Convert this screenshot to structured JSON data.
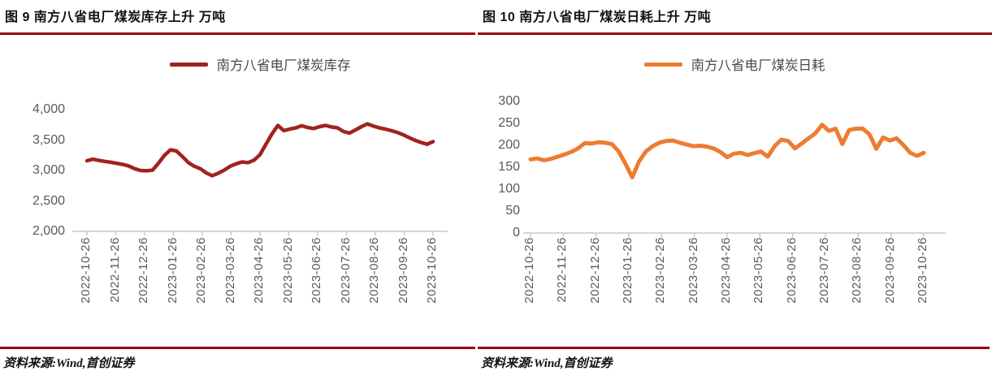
{
  "colors": {
    "rule_red": "#990000",
    "axis_gray": "#c8c8c8",
    "tick_label_gray": "#595959",
    "inventory_line": "#a1231d",
    "consumption_line": "#ed7c31"
  },
  "figures": [
    {
      "title": "图 9 南方八省电厂煤炭库存上升 万吨",
      "legend_label": "南方八省电厂煤炭库存",
      "source": "资料来源:Wind,首创证券",
      "chart_data": {
        "type": "line",
        "title": "南方八省电厂煤炭库存",
        "unit": "万吨",
        "legend_position": "top",
        "grid": false,
        "line_color": "#a1231d",
        "ylim": [
          2000,
          4000
        ],
        "y_ticks": [
          4000,
          3500,
          3000,
          2500,
          2000
        ],
        "y_tick_labels": [
          "4,000",
          "3,500",
          "3,000",
          "2,500",
          "2,000"
        ],
        "x_tick_labels": [
          "2022-10-26",
          "2022-11-26",
          "2022-12-26",
          "2023-01-26",
          "2023-02-26",
          "2023-03-26",
          "2023-04-26",
          "2023-05-26",
          "2023-06-26",
          "2023-07-26",
          "2023-08-26",
          "2023-09-26",
          "2023-10-26"
        ],
        "sampling": "approx weekly readings from 2022-10-26 to 2023-10-26, values estimated from plot",
        "series": [
          {
            "name": "南方八省电厂煤炭库存",
            "values": [
              3160,
              3185,
              3165,
              3150,
              3135,
              3118,
              3100,
              3075,
              3030,
              3000,
              2995,
              3005,
              3120,
              3250,
              3340,
              3320,
              3230,
              3130,
              3070,
              3030,
              2960,
              2915,
              2955,
              3005,
              3070,
              3110,
              3140,
              3130,
              3170,
              3260,
              3430,
              3600,
              3740,
              3655,
              3680,
              3700,
              3735,
              3705,
              3690,
              3720,
              3740,
              3715,
              3700,
              3640,
              3615,
              3665,
              3720,
              3765,
              3730,
              3700,
              3680,
              3655,
              3625,
              3585,
              3540,
              3495,
              3460,
              3430,
              3475
            ]
          }
        ]
      }
    },
    {
      "title": "图 10 南方八省电厂煤炭日耗上升 万吨",
      "legend_label": "南方八省电厂煤炭日耗",
      "source": "资料来源:Wind,首创证券",
      "chart_data": {
        "type": "line",
        "title": "南方八省电厂煤炭日耗",
        "unit": "万吨",
        "legend_position": "top",
        "grid": false,
        "line_color": "#ed7c31",
        "ylim": [
          0,
          300
        ],
        "y_ticks": [
          300,
          250,
          200,
          150,
          100,
          50,
          0
        ],
        "y_tick_labels": [
          "300",
          "250",
          "200",
          "150",
          "100",
          "50",
          "0"
        ],
        "x_tick_labels": [
          "2022-10-26",
          "2022-11-26",
          "2022-12-26",
          "2023-01-26",
          "2023-02-26",
          "2023-03-26",
          "2023-04-26",
          "2023-05-26",
          "2023-06-26",
          "2023-07-26",
          "2023-08-26",
          "2023-09-26",
          "2023-10-26"
        ],
        "sampling": "approx weekly readings from 2022-10-26 to 2023-10-26, values estimated from plot",
        "series": [
          {
            "name": "南方八省电厂煤炭日耗",
            "values": [
              168,
              170,
              166,
              169,
              174,
              179,
              185,
              193,
              205,
              204,
              207,
              206,
              203,
              186,
              158,
              127,
              163,
              186,
              198,
              206,
              210,
              211,
              206,
              202,
              198,
              199,
              197,
              193,
              185,
              173,
              181,
              183,
              178,
              182,
              186,
              174,
              198,
              213,
              210,
              193,
              204,
              216,
              227,
              247,
              233,
              238,
              203,
              235,
              238,
              238,
              225,
              192,
              218,
              211,
              216,
              201,
              183,
              176,
              183
            ]
          }
        ]
      }
    }
  ]
}
